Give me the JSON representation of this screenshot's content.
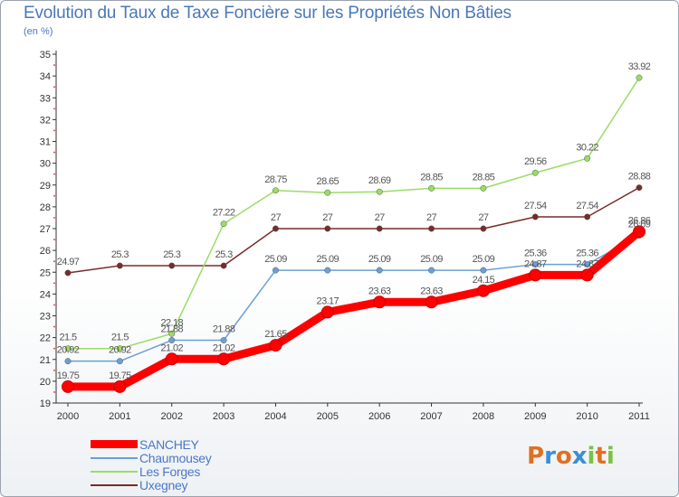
{
  "header": {
    "title": "Evolution du Taux de Taxe Foncière sur les Propriétés Non Bâties",
    "unit": "(en %)"
  },
  "chart_data": {
    "type": "line",
    "title": "Evolution du Taux de Taxe Foncière sur les Propriétés Non Bâties",
    "ylabel": "(en %)",
    "xlabel": "",
    "ylim": [
      19,
      35
    ],
    "yticks": [
      19,
      20,
      21,
      22,
      23,
      24,
      25,
      26,
      27,
      28,
      29,
      30,
      31,
      32,
      33,
      34,
      35
    ],
    "categories": [
      "2000",
      "2001",
      "2002",
      "2003",
      "2004",
      "2005",
      "2006",
      "2007",
      "2008",
      "2009",
      "2010",
      "2011"
    ],
    "series": [
      {
        "name": "SANCHEY",
        "color": "#ff0000",
        "values": [
          19.75,
          19.75,
          21.02,
          21.02,
          21.65,
          23.17,
          23.63,
          23.63,
          24.15,
          24.87,
          24.87,
          26.86
        ],
        "labels": [
          "19.75",
          "19.75",
          "21.02",
          "21.02",
          "21.65",
          "23.17",
          "23.63",
          "23.63",
          "24.15",
          "24.87",
          "24.87",
          "26.86"
        ]
      },
      {
        "name": "Chaumousey",
        "color": "#6aa0d6",
        "values": [
          20.92,
          20.92,
          21.88,
          21.88,
          25.09,
          25.09,
          25.09,
          25.09,
          25.09,
          25.36,
          25.36,
          26.69
        ],
        "labels": [
          "20.92",
          "20.92",
          "21.88",
          "21.88",
          "25.09",
          "25.09",
          "25.09",
          "25.09",
          "25.09",
          "25.36",
          "25.36",
          "26.69"
        ]
      },
      {
        "name": "Les Forges",
        "color": "#99dd66",
        "values": [
          21.5,
          21.5,
          22.18,
          27.22,
          28.75,
          28.65,
          28.69,
          28.85,
          28.85,
          29.56,
          30.22,
          33.92
        ],
        "labels": [
          "21.5",
          "21.5",
          "22.18",
          "27.22",
          "28.75",
          "28.65",
          "28.69",
          "28.85",
          "28.85",
          "29.56",
          "30.22",
          "33.92"
        ]
      },
      {
        "name": "Uxegney",
        "color": "#7a2a2a",
        "values": [
          24.97,
          25.3,
          25.3,
          25.3,
          27,
          27,
          27,
          27,
          27,
          27.54,
          27.54,
          28.88
        ],
        "labels": [
          "24.97",
          "25.3",
          "25.3",
          "25.3",
          "27",
          "27",
          "27",
          "27",
          "27",
          "27.54",
          "27.54",
          "28.88"
        ]
      }
    ],
    "grid": false,
    "legend_position": "bottom-left"
  },
  "logo": {
    "letters": [
      "P",
      "r",
      "o",
      "x",
      "i",
      "t",
      "i"
    ],
    "colors": [
      "#e07020",
      "#3a8ed8",
      "#e07020",
      "#3a8ed8",
      "#7cc242",
      "#e07020",
      "#7cc242"
    ]
  }
}
